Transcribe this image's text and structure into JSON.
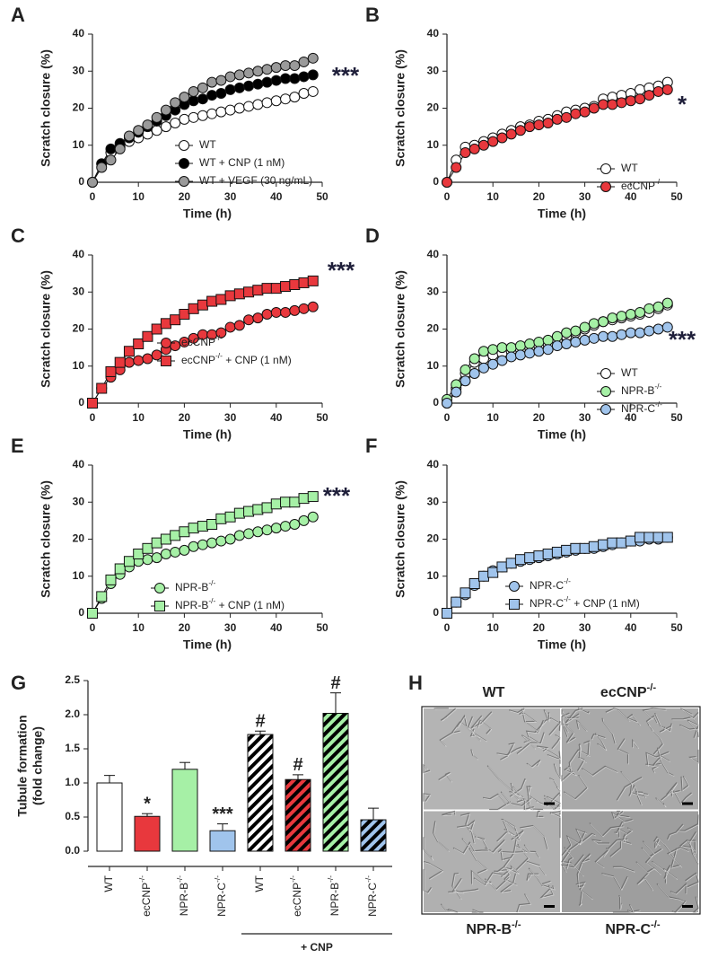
{
  "chart_data": [
    {
      "type": "line",
      "panel_label": "A",
      "xlabel": "Time (h)",
      "ylabel": "Scratch closure (%)",
      "annotation": "***",
      "x": [
        0,
        2,
        4,
        6,
        8,
        10,
        12,
        14,
        16,
        18,
        20,
        22,
        24,
        26,
        28,
        30,
        32,
        34,
        36,
        38,
        40,
        42,
        44,
        46,
        48
      ],
      "xlim": [
        0,
        50
      ],
      "xticks": [
        0,
        10,
        20,
        30,
        40,
        50
      ],
      "ylim": [
        0,
        40
      ],
      "yticks": [
        0,
        10,
        20,
        30,
        40
      ],
      "legend": "lower right",
      "series": [
        {
          "name": "WT",
          "color": "#ffffff",
          "marker": "circle",
          "values": [
            0,
            5,
            8,
            9.5,
            11,
            12,
            13,
            14,
            15,
            16,
            17,
            17.5,
            18,
            18.5,
            19,
            19.5,
            20,
            20.5,
            21,
            21.5,
            22,
            22.5,
            23,
            24,
            24.5
          ]
        },
        {
          "name": "WT + CNP (1 nM)",
          "color": "#000000",
          "marker": "circle",
          "values": [
            0,
            5,
            9,
            10.5,
            12,
            13.5,
            15,
            16.5,
            18,
            19.5,
            21,
            22,
            22.5,
            23.5,
            24,
            25,
            25.5,
            26,
            26.5,
            27,
            27.5,
            28,
            28,
            28.5,
            29
          ]
        },
        {
          "name": "WT + VEGF (30 ng/mL)",
          "color": "#9a9a9a",
          "marker": "circle",
          "values": [
            0,
            4,
            6,
            9,
            12.5,
            14,
            15.5,
            17.5,
            19.5,
            21.5,
            23,
            24.5,
            25.5,
            27,
            27.5,
            28.5,
            29,
            29.5,
            30,
            30.5,
            31,
            31.5,
            31.5,
            32.5,
            33.5
          ]
        }
      ]
    },
    {
      "type": "line",
      "panel_label": "B",
      "xlabel": "Time (h)",
      "ylabel": "Scratch closure (%)",
      "annotation": "*",
      "x": [
        0,
        2,
        4,
        6,
        8,
        10,
        12,
        14,
        16,
        18,
        20,
        22,
        24,
        26,
        28,
        30,
        32,
        34,
        36,
        38,
        40,
        42,
        44,
        46,
        48
      ],
      "xlim": [
        0,
        50
      ],
      "xticks": [
        0,
        10,
        20,
        30,
        40,
        50
      ],
      "ylim": [
        0,
        40
      ],
      "yticks": [
        0,
        10,
        20,
        30,
        40
      ],
      "legend": "lower right",
      "series": [
        {
          "name": "WT",
          "color": "#ffffff",
          "marker": "circle",
          "values": [
            0,
            6,
            9.5,
            10,
            11,
            12,
            13,
            14,
            15,
            15.5,
            16.5,
            17,
            18,
            19,
            19.5,
            20,
            20.5,
            22.5,
            23,
            23.5,
            24,
            25,
            25.5,
            26,
            27
          ]
        },
        {
          "name": "ecCNP-/-",
          "color": "#e8383d",
          "marker": "circle",
          "values": [
            0,
            4,
            8,
            9,
            10,
            11,
            12,
            13,
            14,
            15,
            15.5,
            16,
            17,
            17.5,
            18.5,
            19,
            20,
            21,
            21,
            21.5,
            22,
            22.5,
            23.5,
            24.5,
            25
          ]
        }
      ]
    },
    {
      "type": "line",
      "panel_label": "C",
      "xlabel": "Time (h)",
      "ylabel": "Scratch closure (%)",
      "annotation": "***",
      "x": [
        0,
        2,
        4,
        6,
        8,
        10,
        12,
        14,
        16,
        18,
        20,
        22,
        24,
        26,
        28,
        30,
        32,
        34,
        36,
        38,
        40,
        42,
        44,
        46,
        48
      ],
      "xlim": [
        0,
        50
      ],
      "xticks": [
        0,
        10,
        20,
        30,
        40,
        50
      ],
      "ylim": [
        0,
        40
      ],
      "yticks": [
        0,
        10,
        20,
        30,
        40
      ],
      "legend": "lower right",
      "series": [
        {
          "name": "ecCNP-/-",
          "color": "#e8383d",
          "marker": "circle",
          "values": [
            0,
            4,
            7,
            9,
            11,
            11.5,
            12,
            13,
            14.5,
            15.5,
            16.5,
            17.5,
            18.5,
            18.5,
            19,
            20.5,
            21,
            22.5,
            23,
            24,
            24.5,
            24.5,
            25,
            25.5,
            26
          ]
        },
        {
          "name": "ecCNP-/- + CNP (1 nM)",
          "color": "#e8383d",
          "marker": "square",
          "values": [
            0,
            4,
            8.5,
            11,
            14,
            16,
            18,
            20,
            21.5,
            22.5,
            24,
            25.5,
            26.5,
            27.5,
            28,
            29,
            29.5,
            30,
            30.5,
            31,
            31,
            31.5,
            32,
            32.5,
            33
          ]
        }
      ]
    },
    {
      "type": "line",
      "panel_label": "D",
      "xlabel": "Time (h)",
      "ylabel": "Scratch closure (%)",
      "annotation": "***",
      "x": [
        0,
        2,
        4,
        6,
        8,
        10,
        12,
        14,
        16,
        18,
        20,
        22,
        24,
        26,
        28,
        30,
        32,
        34,
        36,
        38,
        40,
        42,
        44,
        46,
        48
      ],
      "xlim": [
        0,
        50
      ],
      "xticks": [
        0,
        10,
        20,
        30,
        40,
        50
      ],
      "ylim": [
        0,
        40
      ],
      "yticks": [
        0,
        10,
        20,
        30,
        40
      ],
      "legend": "lower right",
      "series": [
        {
          "name": "WT",
          "color": "#ffffff",
          "marker": "circle",
          "values": [
            0,
            4,
            8,
            11,
            12,
            13,
            13.5,
            14,
            14.5,
            15,
            15.5,
            16,
            17,
            18,
            19,
            20,
            21,
            22,
            22.5,
            23,
            23.5,
            24,
            24.5,
            25.5,
            26.5
          ]
        },
        {
          "name": "NPR-B-/-",
          "color": "#a6f0a6",
          "marker": "circle",
          "values": [
            1,
            5,
            9,
            12,
            14,
            14.5,
            15,
            15,
            15.5,
            16,
            16.5,
            17,
            18,
            19,
            19.5,
            20.5,
            21.5,
            22,
            23,
            23.5,
            24,
            24.5,
            25.5,
            26,
            27
          ]
        },
        {
          "name": "NPR-C-/-",
          "color": "#a0c4ec",
          "marker": "circle",
          "values": [
            0,
            3,
            6,
            8,
            9.5,
            10.5,
            11.5,
            12.5,
            13,
            13.5,
            14,
            14.5,
            15.5,
            16,
            16.5,
            17,
            17.5,
            18,
            18,
            18.5,
            19,
            19,
            19.5,
            20,
            20.5
          ]
        }
      ]
    },
    {
      "type": "line",
      "panel_label": "E",
      "xlabel": "Time (h)",
      "ylabel": "Scratch closure (%)",
      "annotation": "***",
      "x": [
        0,
        2,
        4,
        6,
        8,
        10,
        12,
        14,
        16,
        18,
        20,
        22,
        24,
        26,
        28,
        30,
        32,
        34,
        36,
        38,
        40,
        42,
        44,
        46,
        48
      ],
      "xlim": [
        0,
        50
      ],
      "xticks": [
        0,
        10,
        20,
        30,
        40,
        50
      ],
      "ylim": [
        0,
        40
      ],
      "yticks": [
        0,
        10,
        20,
        30,
        40
      ],
      "legend": "lower right",
      "series": [
        {
          "name": "NPR-B-/-",
          "color": "#a6f0a6",
          "marker": "circle",
          "values": [
            0,
            4,
            8,
            10.5,
            12.5,
            14,
            14.5,
            15,
            16,
            16.5,
            17,
            18,
            18.5,
            19,
            19.5,
            20,
            21,
            21.5,
            22,
            22.5,
            23,
            23.5,
            24,
            25,
            26
          ]
        },
        {
          "name": "NPR-B-/- + CNP (1 nM)",
          "color": "#a6f0a6",
          "marker": "square",
          "values": [
            0,
            4.5,
            9,
            12,
            14,
            16,
            17.5,
            19,
            20,
            21,
            22,
            23,
            23.5,
            24,
            25.5,
            26,
            27,
            27.5,
            28,
            28.5,
            29.5,
            30,
            30,
            31,
            31.5
          ]
        }
      ]
    },
    {
      "type": "line",
      "panel_label": "F",
      "xlabel": "Time (h)",
      "ylabel": "Scratch closure (%)",
      "x": [
        0,
        2,
        4,
        6,
        8,
        10,
        12,
        14,
        16,
        18,
        20,
        22,
        24,
        26,
        28,
        30,
        32,
        34,
        36,
        38,
        40,
        42,
        44,
        46,
        48
      ],
      "xlim": [
        0,
        50
      ],
      "xticks": [
        0,
        10,
        20,
        30,
        40,
        50
      ],
      "ylim": [
        0,
        40
      ],
      "yticks": [
        0,
        10,
        20,
        30,
        40
      ],
      "legend": "lower right",
      "series": [
        {
          "name": "NPR-C-/-",
          "color": "#a0c4ec",
          "marker": "circle",
          "values": [
            0,
            3,
            5,
            7.5,
            10,
            11.5,
            12.5,
            13.5,
            14,
            14.5,
            15,
            15.5,
            16,
            16.5,
            17,
            17.5,
            17.5,
            18,
            18.5,
            19,
            19.5,
            19.5,
            20,
            20,
            20.5
          ]
        },
        {
          "name": "NPR-C-/- + CNP (1 nM)",
          "color": "#a0c4ec",
          "marker": "square",
          "values": [
            0,
            3,
            5.5,
            8,
            10,
            11,
            12.5,
            13.5,
            14.5,
            15,
            15.5,
            16,
            16.5,
            17,
            17.5,
            17.5,
            18,
            18.5,
            19,
            19,
            19.5,
            20.5,
            20.5,
            20.5,
            20.5
          ]
        }
      ]
    },
    {
      "type": "bar",
      "panel_label": "G",
      "ylabel": [
        "Tubule formation",
        "(fold change)"
      ],
      "categories": [
        "WT",
        "ecCNP-/-",
        "NPR-B-/-",
        "NPR-C-/-",
        "WT",
        "ecCNP-/-",
        "NPR-B-/-",
        "NPR-C-/-"
      ],
      "values": [
        1.0,
        0.51,
        1.2,
        0.3,
        1.71,
        1.05,
        2.02,
        0.46
      ],
      "errors": [
        0.11,
        0.04,
        0.1,
        0.1,
        0.05,
        0.07,
        0.3,
        0.17
      ],
      "colors": [
        "#ffffff",
        "#e8383d",
        "#a6f0a6",
        "#a0c4ec",
        "#ffffff",
        "#e8383d",
        "#a6f0a6",
        "#a0c4ec"
      ],
      "hatch": [
        false,
        false,
        false,
        false,
        true,
        true,
        true,
        true
      ],
      "bar_labels": [
        null,
        "*",
        null,
        "***",
        "#",
        "#",
        "#",
        null
      ],
      "group_label": "+ CNP",
      "ylim": [
        0,
        2.5
      ],
      "yticks": [
        {
          "value": 0,
          "label": "0.0"
        },
        {
          "value": 0.5,
          "label": "0.5"
        },
        {
          "value": 1,
          "label": "1.0"
        },
        {
          "value": 1.5,
          "label": "1.5"
        },
        {
          "value": 2,
          "label": "2.0"
        },
        {
          "value": 2.5,
          "label": "2.5"
        }
      ]
    },
    {
      "type": "image-grid",
      "panel_label": "H",
      "labels": [
        "WT",
        "ecCNP-/-",
        "NPR-B-/-",
        "NPR-C-/-"
      ]
    }
  ]
}
